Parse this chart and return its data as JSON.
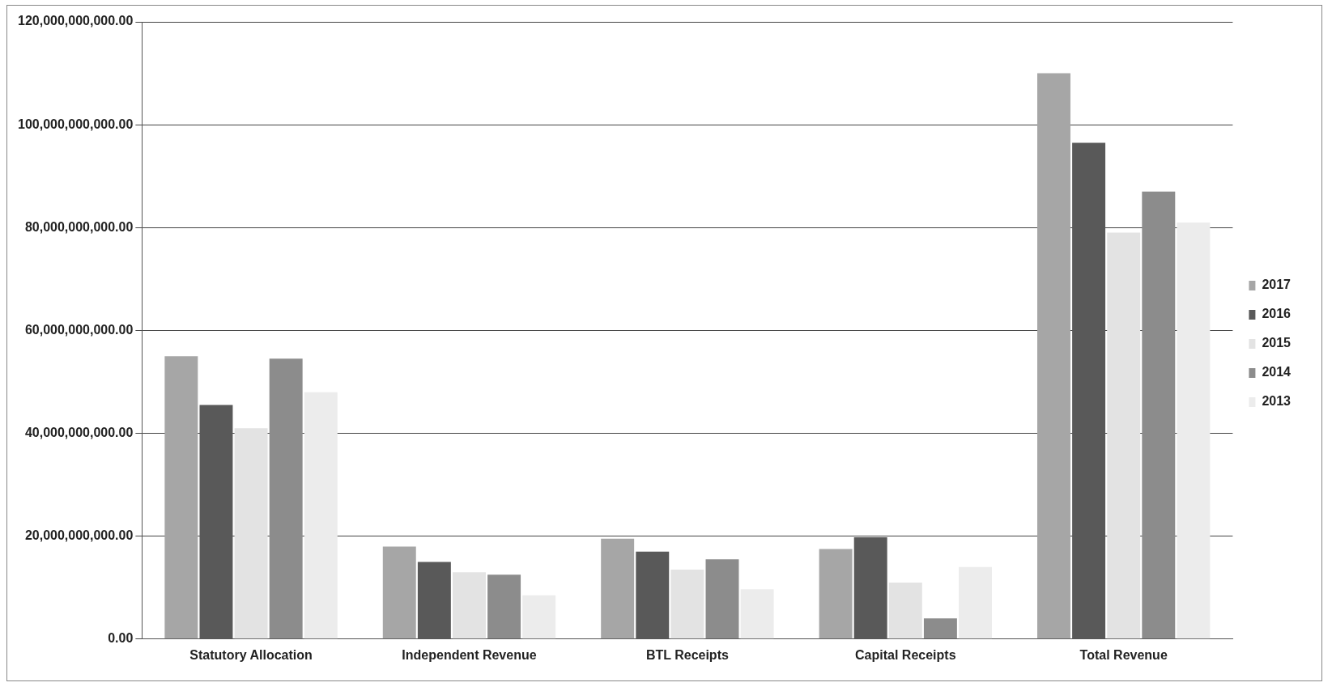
{
  "chart_data": {
    "type": "bar",
    "categories": [
      "Statutory Allocation",
      "Independent Revenue",
      "BTL Receipts",
      "Capital Receipts",
      "Total Revenue"
    ],
    "series": [
      {
        "name": "2017",
        "color": "#a6a6a6",
        "values": [
          55000000000,
          18000000000,
          19500000000,
          17500000000,
          110000000000
        ]
      },
      {
        "name": "2016",
        "color": "#595959",
        "values": [
          45500000000,
          15000000000,
          17000000000,
          19800000000,
          96500000000
        ]
      },
      {
        "name": "2015",
        "color": "#e3e3e3",
        "values": [
          41000000000,
          13000000000,
          13500000000,
          11000000000,
          79000000000
        ]
      },
      {
        "name": "2014",
        "color": "#8c8c8c",
        "values": [
          54500000000,
          12500000000,
          15500000000,
          4000000000,
          87000000000
        ]
      },
      {
        "name": "2013",
        "color": "#ececec",
        "values": [
          48000000000,
          8500000000,
          9700000000,
          14000000000,
          81000000000
        ]
      }
    ],
    "ylim": [
      0,
      120000000000
    ],
    "yticks": [
      {
        "value": 0,
        "label": "0.00"
      },
      {
        "value": 20000000000,
        "label": "20,000,000,000.00"
      },
      {
        "value": 40000000000,
        "label": "40,000,000,000.00"
      },
      {
        "value": 60000000000,
        "label": "60,000,000,000.00"
      },
      {
        "value": 80000000000,
        "label": "80,000,000,000.00"
      },
      {
        "value": 100000000000,
        "label": "100,000,000,000.00"
      },
      {
        "value": 120000000000,
        "label": "120,000,000,000.00"
      }
    ],
    "grid": "y",
    "legend": "right"
  }
}
